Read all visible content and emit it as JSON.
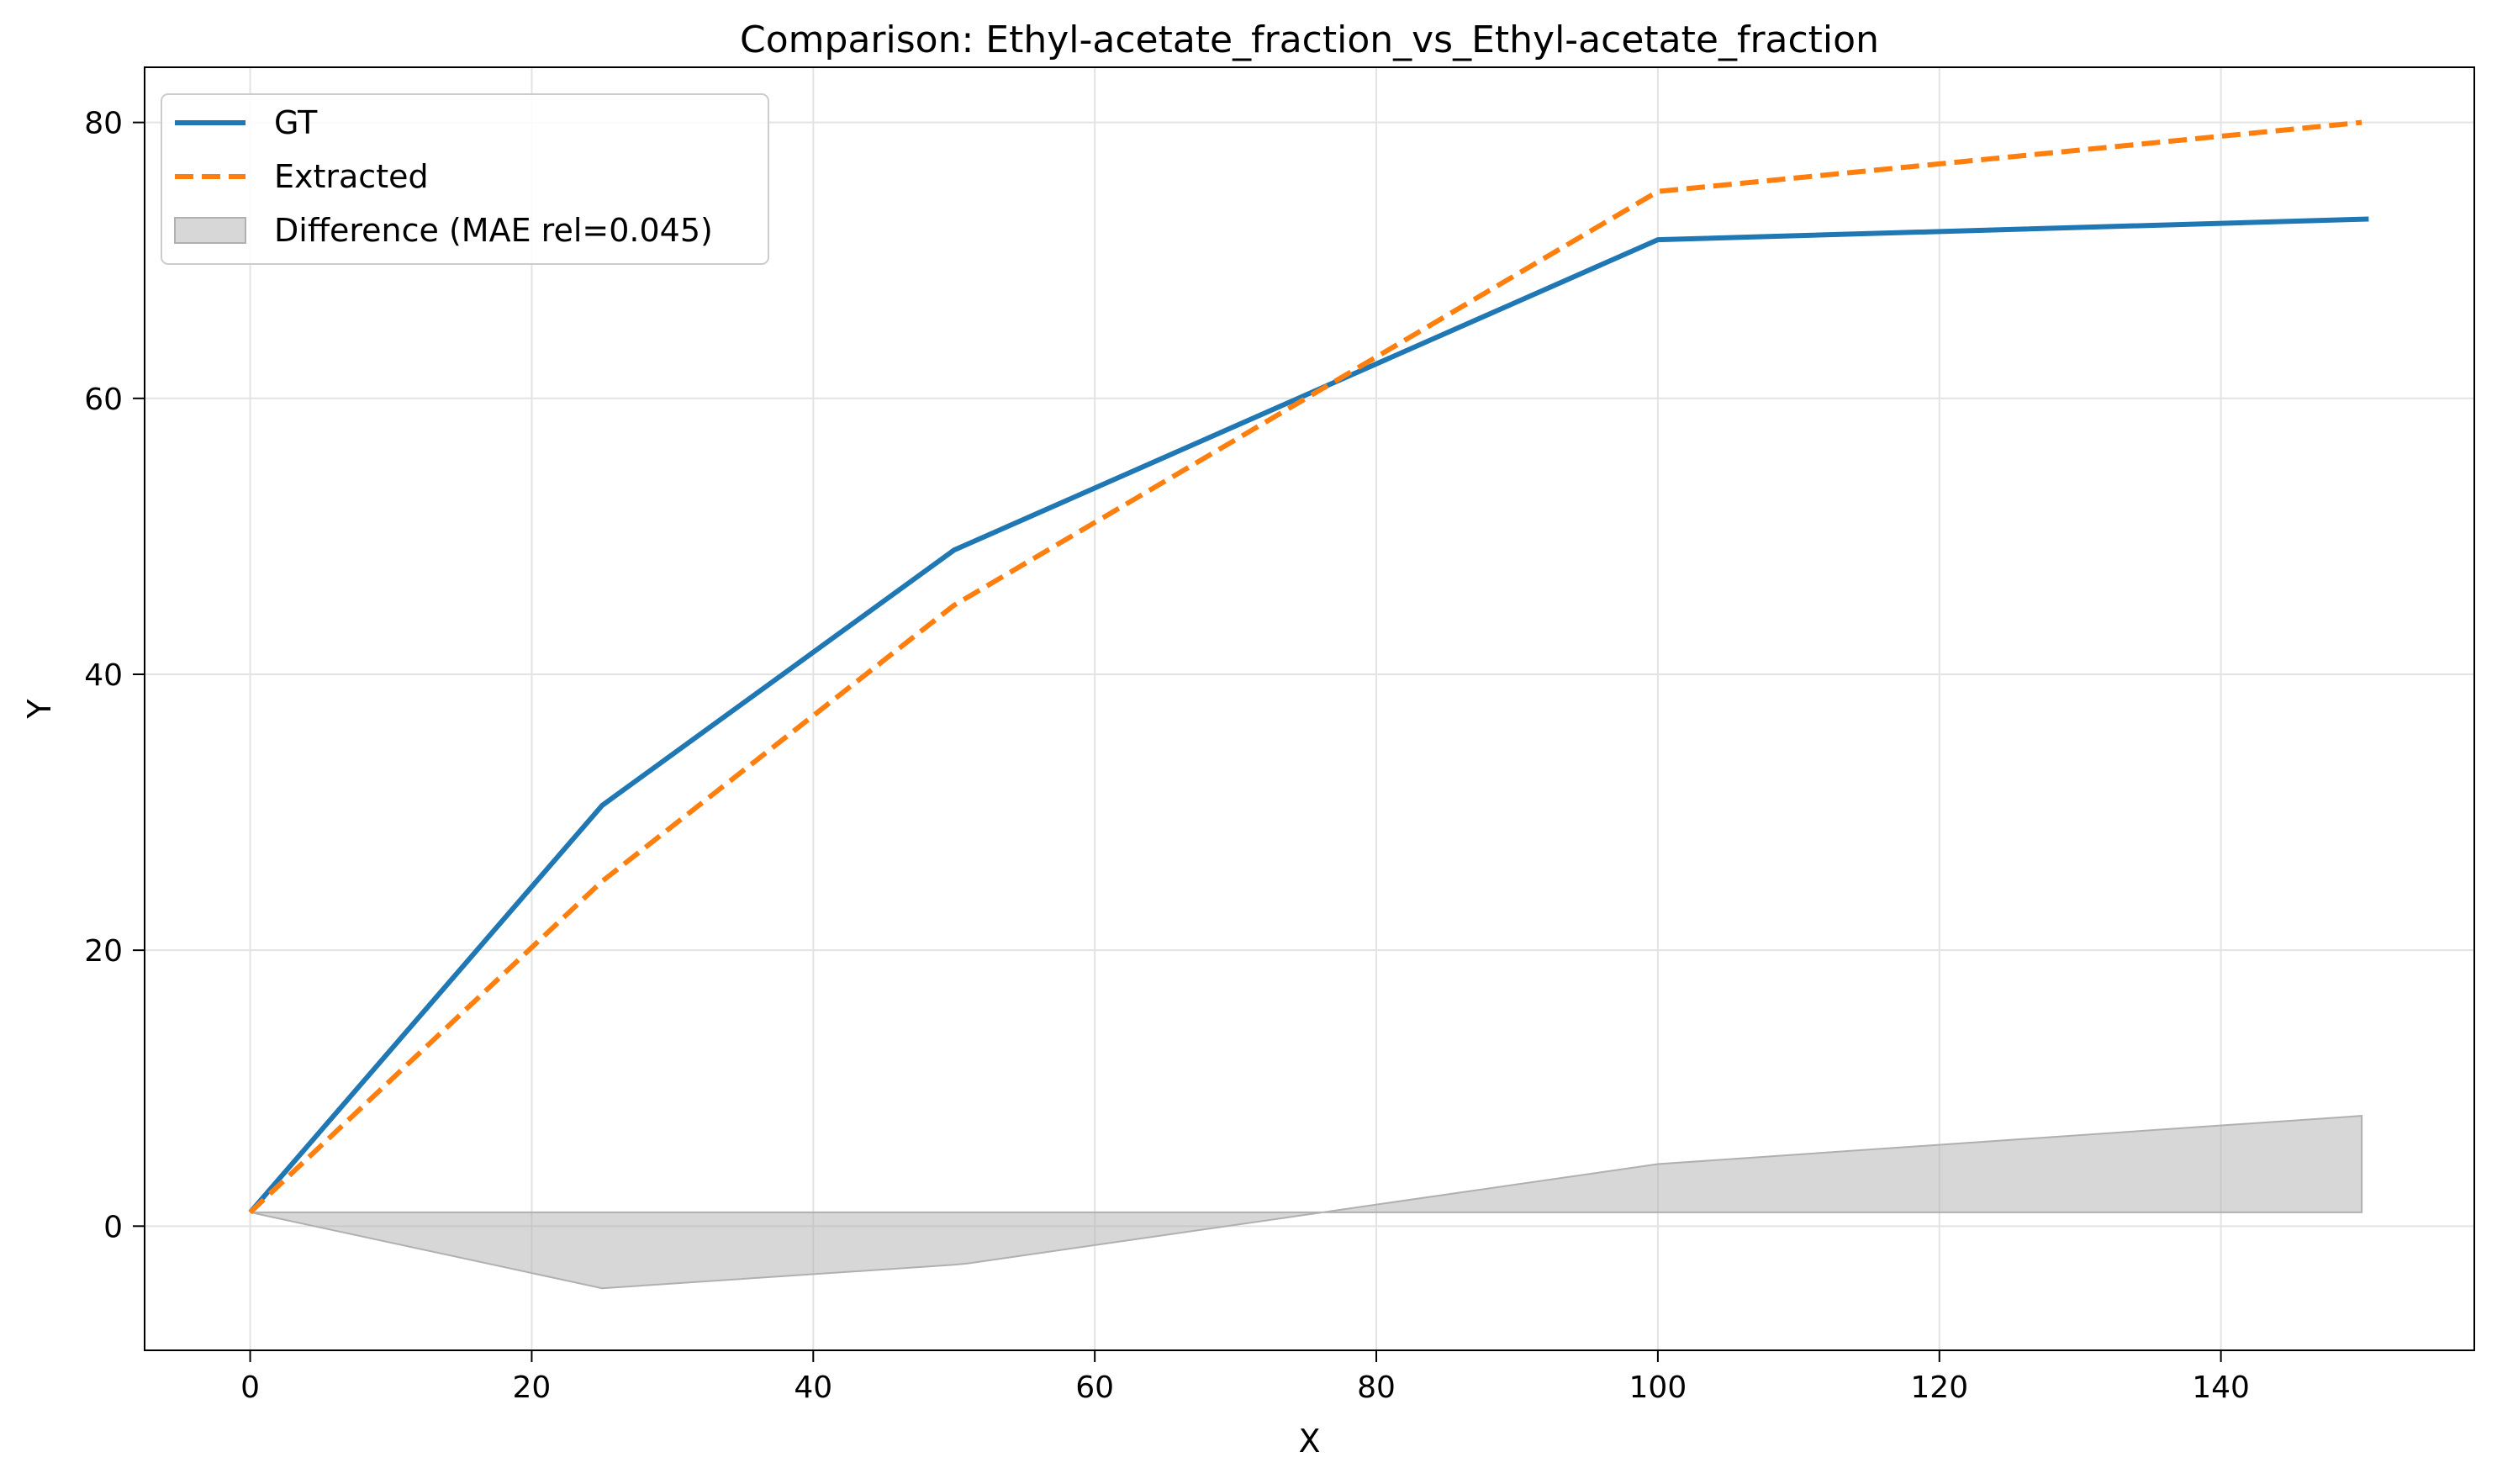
{
  "chart_data": {
    "type": "line",
    "title": "Comparison: Ethyl-acetate_fraction_vs_Ethyl-acetate_fraction",
    "xlabel": "X",
    "ylabel": "Y",
    "xlim": [
      -7.5,
      158
    ],
    "ylim": [
      -9,
      84
    ],
    "xticks": [
      0,
      20,
      40,
      60,
      80,
      100,
      120,
      140
    ],
    "yticks": [
      0,
      20,
      40,
      60,
      80
    ],
    "grid": true,
    "legend_position": "top-left",
    "series": [
      {
        "name": "GT",
        "color": "#1f77b4",
        "style": "solid",
        "x": [
          0,
          25,
          50,
          100,
          150.5
        ],
        "y": [
          1,
          30.5,
          49,
          71.5,
          73
        ]
      },
      {
        "name": "Extracted",
        "color": "#ff7f0e",
        "style": "dashed",
        "x": [
          0,
          25,
          50,
          100,
          150
        ],
        "y": [
          1,
          25,
          45,
          75,
          80
        ]
      }
    ],
    "difference": {
      "name": "Difference (MAE rel=0.045)",
      "color": "#b0b0b0",
      "baseline": 1,
      "x": [
        0,
        25,
        50,
        51,
        100,
        150
      ],
      "y": [
        1,
        -4.5,
        -2.8,
        -2.7,
        4.5,
        8
      ]
    }
  }
}
